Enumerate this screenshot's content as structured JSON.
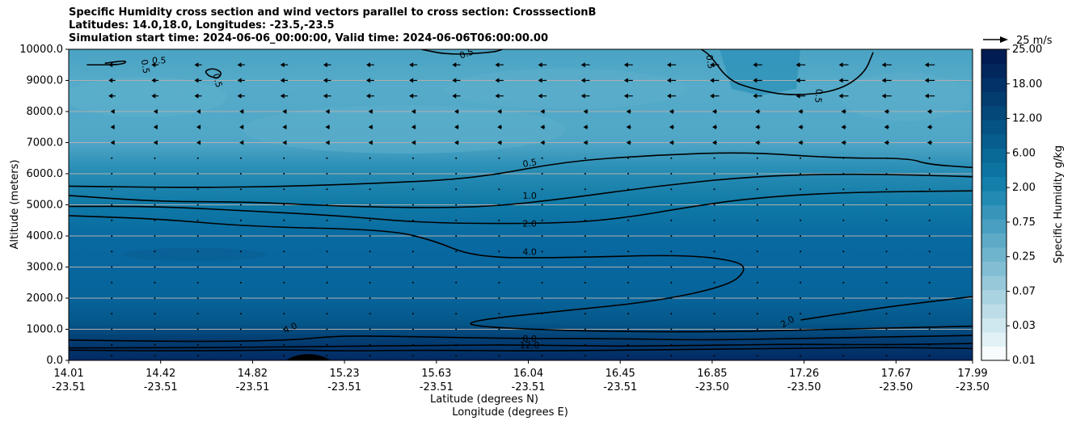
{
  "chart_data": {
    "type": "heatmap",
    "title_lines": [
      "Specific Humidity cross section and wind vectors parallel to cross section: CrosssectionB",
      "Latitudes: 14.0,18.0, Longitudes: -23.5,-23.5",
      "Simulation start time: 2024-06-06_00:00:00, Valid time: 2024-06-06T06:00:00.00"
    ],
    "ylabel": "Altitude (meters)",
    "xlabel_lat": "Latitude (degrees N)",
    "xlabel_lon": "Longitude (degrees E)",
    "ylim": [
      0,
      10000
    ],
    "y_ticks": [
      "0.0",
      "1000.0",
      "2000.0",
      "3000.0",
      "4000.0",
      "5000.0",
      "6000.0",
      "7000.0",
      "8000.0",
      "9000.0",
      "10000.0"
    ],
    "x_ticks": [
      {
        "lat": "14.01",
        "lon": "-23.51"
      },
      {
        "lat": "14.42",
        "lon": "-23.51"
      },
      {
        "lat": "14.82",
        "lon": "-23.51"
      },
      {
        "lat": "15.23",
        "lon": "-23.51"
      },
      {
        "lat": "15.63",
        "lon": "-23.51"
      },
      {
        "lat": "16.04",
        "lon": "-23.51"
      },
      {
        "lat": "16.45",
        "lon": "-23.51"
      },
      {
        "lat": "16.85",
        "lon": "-23.50"
      },
      {
        "lat": "17.26",
        "lon": "-23.50"
      },
      {
        "lat": "17.67",
        "lon": "-23.50"
      },
      {
        "lat": "17.99",
        "lon": "-23.50"
      }
    ],
    "grid": "horizontal",
    "colorbar": {
      "label": "Specific Humidity g/kg",
      "tick_labels": [
        "0.01",
        "0.03",
        "0.07",
        "0.25",
        "0.75",
        "2.00",
        "6.00",
        "12.00",
        "18.00",
        "25.00"
      ],
      "colors": [
        "#f7fbfd",
        "#e2f1f5",
        "#cfe7ee",
        "#bcdde7",
        "#a9d3e0",
        "#96c8da",
        "#82bed3",
        "#6fb4cd",
        "#5caac6",
        "#499fc0",
        "#3695b9",
        "#238bb3",
        "#137faa",
        "#0d74a1",
        "#096997",
        "#075e8e",
        "#055384",
        "#04487a",
        "#033d70",
        "#023267",
        "#01275d",
        "#011c53"
      ]
    },
    "quiver_key": {
      "label": "25 m/s"
    },
    "contour_labels": [
      "0.5",
      "0.5",
      "0.5",
      "0.5",
      "0.5",
      "0.5",
      "0.5",
      "1.0",
      "2.0",
      "4.0",
      "4.0",
      "8.0",
      "12.0",
      "2.0"
    ],
    "contours": [
      {
        "level": "0.5",
        "points": [
          [
            0,
            5600
          ],
          [
            1.4,
            5550
          ],
          [
            2.5,
            5600
          ],
          [
            3.5,
            5700
          ],
          [
            4.5,
            5850
          ],
          [
            5.5,
            6400
          ],
          [
            6.5,
            6600
          ],
          [
            7.5,
            6700
          ],
          [
            8.5,
            6500
          ],
          [
            9.3,
            6500
          ],
          [
            9.5,
            6300
          ],
          [
            10,
            6200
          ]
        ]
      },
      {
        "level": "1.0",
        "points": [
          [
            0,
            5300
          ],
          [
            1,
            5100
          ],
          [
            2,
            5100
          ],
          [
            3,
            4950
          ],
          [
            4,
            4900
          ],
          [
            4.7,
            4950
          ],
          [
            5.5,
            5200
          ],
          [
            6.5,
            5600
          ],
          [
            7.5,
            5900
          ],
          [
            8.5,
            6000
          ],
          [
            9.5,
            5950
          ],
          [
            10,
            5900
          ]
        ]
      },
      {
        "level": "2.0",
        "points": [
          [
            0,
            4950
          ],
          [
            1,
            4950
          ],
          [
            2,
            4800
          ],
          [
            3,
            4650
          ],
          [
            4,
            4400
          ],
          [
            5.5,
            4400
          ],
          [
            6.2,
            4600
          ],
          [
            6.8,
            4900
          ],
          [
            7.5,
            5200
          ],
          [
            8.5,
            5400
          ],
          [
            10,
            5450
          ]
        ]
      },
      {
        "level": "4.0",
        "points": [
          [
            0,
            4650
          ],
          [
            1,
            4550
          ],
          [
            2,
            4300
          ],
          [
            3.5,
            4200
          ],
          [
            4,
            3900
          ],
          [
            4.5,
            3300
          ],
          [
            5.5,
            3300
          ],
          [
            6.8,
            3400
          ],
          [
            7.4,
            3200
          ],
          [
            7.5,
            2900
          ],
          [
            7.3,
            2400
          ],
          [
            6.5,
            1900
          ],
          [
            5.5,
            1600
          ],
          [
            4.5,
            1300
          ],
          [
            4.4,
            1100
          ],
          [
            5.5,
            950
          ],
          [
            7,
            900
          ],
          [
            8.5,
            1000
          ],
          [
            10,
            1100
          ]
        ]
      },
      {
        "level": "2.0",
        "points": [
          [
            8.1,
            1300
          ],
          [
            9,
            1700
          ],
          [
            10,
            2050
          ]
        ]
      },
      {
        "level": "4.0",
        "points": [
          [
            0,
            650
          ],
          [
            1.5,
            600
          ],
          [
            2.5,
            650
          ],
          [
            3,
            800
          ],
          [
            4,
            750
          ],
          [
            5,
            700
          ],
          [
            6,
            700
          ],
          [
            7,
            650
          ],
          [
            8,
            700
          ],
          [
            9,
            750
          ],
          [
            10,
            800
          ]
        ]
      },
      {
        "level": "8.0",
        "points": [
          [
            0,
            400
          ],
          [
            1,
            400
          ],
          [
            2,
            420
          ],
          [
            3,
            450
          ],
          [
            4,
            480
          ],
          [
            5,
            500
          ],
          [
            6,
            450
          ],
          [
            7,
            480
          ],
          [
            8,
            520
          ],
          [
            9,
            500
          ],
          [
            10,
            540
          ]
        ]
      },
      {
        "level": "12.0",
        "points": [
          [
            0,
            330
          ],
          [
            1,
            300
          ],
          [
            2,
            320
          ],
          [
            2.5,
            340
          ],
          [
            3,
            300
          ],
          [
            4,
            330
          ],
          [
            5,
            300
          ],
          [
            6,
            320
          ],
          [
            7,
            360
          ],
          [
            8,
            380
          ],
          [
            9,
            420
          ],
          [
            10,
            380
          ]
        ]
      },
      {
        "level": "0.5",
        "points": [
          [
            3.9,
            10000
          ],
          [
            4.2,
            9820
          ],
          [
            4.7,
            9900
          ],
          [
            4.8,
            10000
          ]
        ]
      },
      {
        "level": "0.5",
        "points": [
          [
            7,
            10000
          ],
          [
            7.1,
            9800
          ],
          [
            7.3,
            9000
          ],
          [
            7.6,
            8700
          ],
          [
            8,
            8500
          ],
          [
            8.5,
            8650
          ],
          [
            8.8,
            9200
          ],
          [
            8.9,
            9900
          ]
        ]
      },
      {
        "level": "0.5",
        "points": [
          [
            1.55,
            9150
          ],
          [
            1.5,
            9300
          ],
          [
            1.6,
            9400
          ],
          [
            1.7,
            9250
          ],
          [
            1.65,
            9050
          ],
          [
            1.55,
            9150
          ]
        ]
      },
      {
        "level": "0.5",
        "points": [
          [
            0.2,
            9500
          ],
          [
            0.6,
            9500
          ],
          [
            0.65,
            9650
          ],
          [
            0.4,
            9550
          ]
        ]
      }
    ],
    "terrain": {
      "x_range": [
        2.4,
        2.9
      ],
      "peak_altitude": 200
    },
    "wind_vectors": {
      "note": "arrows pointing westward, stronger aloft",
      "rows_altitude": [
        150,
        500,
        1000,
        1500,
        2000,
        2500,
        3000,
        3500,
        4000,
        4500,
        5000,
        5500,
        6000,
        6500,
        7000,
        7500,
        8000,
        8500,
        9000,
        9500
      ]
    }
  }
}
